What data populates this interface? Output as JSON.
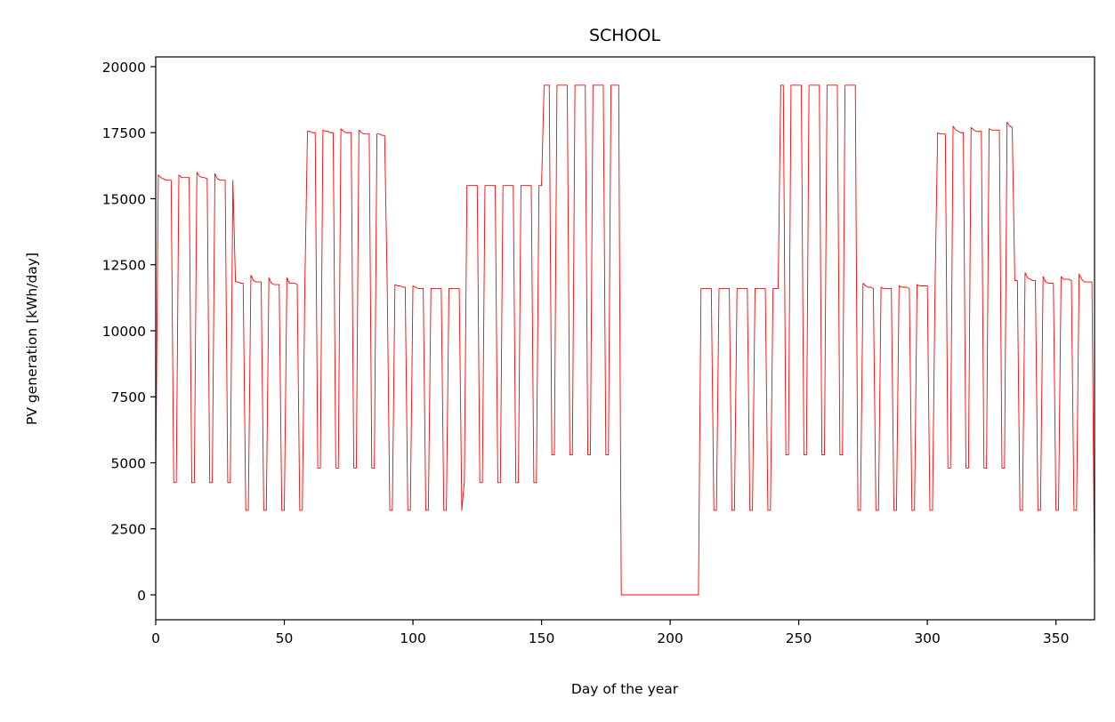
{
  "chart_data": {
    "type": "line",
    "title": "SCHOOL",
    "x_label": "Day of the year",
    "y_label": "PV generation [kWh/day]",
    "xlim": [
      0,
      365
    ],
    "ylim": [
      -943,
      20370
    ],
    "xticks": [
      0,
      50,
      100,
      150,
      200,
      250,
      300,
      350
    ],
    "yticks": [
      0,
      2500,
      5000,
      7500,
      10000,
      12500,
      15000,
      17500,
      20000
    ],
    "x": [
      0,
      1,
      2,
      3,
      4,
      5,
      6,
      7,
      8,
      9,
      10,
      11,
      12,
      13,
      14,
      15,
      16,
      17,
      18,
      19,
      20,
      21,
      22,
      23,
      24,
      25,
      26,
      27,
      28,
      29,
      30,
      31,
      32,
      33,
      34,
      35,
      36,
      37,
      38,
      39,
      40,
      41,
      42,
      43,
      44,
      45,
      46,
      47,
      48,
      49,
      50,
      51,
      52,
      53,
      54,
      55,
      56,
      57,
      58,
      59,
      60,
      61,
      62,
      63,
      64,
      65,
      66,
      67,
      68,
      69,
      70,
      71,
      72,
      73,
      74,
      75,
      76,
      77,
      78,
      79,
      80,
      81,
      82,
      83,
      84,
      85,
      86,
      87,
      88,
      89,
      90,
      91,
      92,
      93,
      94,
      95,
      96,
      97,
      98,
      99,
      100,
      101,
      102,
      103,
      104,
      105,
      106,
      107,
      108,
      109,
      110,
      111,
      112,
      113,
      114,
      115,
      116,
      117,
      118,
      119,
      120,
      121,
      122,
      123,
      124,
      125,
      126,
      127,
      128,
      129,
      130,
      131,
      132,
      133,
      134,
      135,
      136,
      137,
      138,
      139,
      140,
      141,
      142,
      143,
      144,
      145,
      146,
      147,
      148,
      149,
      150,
      151,
      152,
      153,
      154,
      155,
      156,
      157,
      158,
      159,
      160,
      161,
      162,
      163,
      164,
      165,
      166,
      167,
      168,
      169,
      170,
      171,
      172,
      173,
      174,
      175,
      176,
      177,
      178,
      179,
      180,
      181,
      182,
      183,
      184,
      185,
      186,
      187,
      188,
      189,
      190,
      191,
      192,
      193,
      194,
      195,
      196,
      197,
      198,
      199,
      200,
      201,
      202,
      203,
      204,
      205,
      206,
      207,
      208,
      209,
      210,
      211,
      212,
      213,
      214,
      215,
      216,
      217,
      218,
      219,
      220,
      221,
      222,
      223,
      224,
      225,
      226,
      227,
      228,
      229,
      230,
      231,
      232,
      233,
      234,
      235,
      236,
      237,
      238,
      239,
      240,
      241,
      242,
      243,
      244,
      245,
      246,
      247,
      248,
      249,
      250,
      251,
      252,
      253,
      254,
      255,
      256,
      257,
      258,
      259,
      260,
      261,
      262,
      263,
      264,
      265,
      266,
      267,
      268,
      269,
      270,
      271,
      272,
      273,
      274,
      275,
      276,
      277,
      278,
      279,
      280,
      281,
      282,
      283,
      284,
      285,
      286,
      287,
      288,
      289,
      290,
      291,
      292,
      293,
      294,
      295,
      296,
      297,
      298,
      299,
      300,
      301,
      302,
      303,
      304,
      305,
      306,
      307,
      308,
      309,
      310,
      311,
      312,
      313,
      314,
      315,
      316,
      317,
      318,
      319,
      320,
      321,
      322,
      323,
      324,
      325,
      326,
      327,
      328,
      329,
      330,
      331,
      332,
      333,
      334,
      335,
      336,
      337,
      338,
      339,
      340,
      341,
      342,
      343,
      344,
      345,
      346,
      347,
      348,
      349,
      350,
      351,
      352,
      353,
      354,
      355,
      356,
      357,
      358,
      359,
      360,
      361,
      362,
      363,
      364,
      365
    ],
    "series": [
      {
        "color": "#ff0000",
        "values": [
          4250,
          15900,
          15800,
          15750,
          15700,
          15700,
          15700,
          4250,
          4250,
          15900,
          15800,
          15800,
          15800,
          15800,
          4250,
          4250,
          16000,
          15850,
          15800,
          15800,
          15750,
          4250,
          4250,
          15950,
          15750,
          15700,
          15700,
          15700,
          4250,
          4250,
          15700,
          11850,
          11850,
          11800,
          11800,
          3200,
          3200,
          12100,
          11900,
          11850,
          11850,
          11850,
          3200,
          3200,
          12000,
          11800,
          11750,
          11750,
          11750,
          3200,
          3200,
          12000,
          11800,
          11800,
          11800,
          11750,
          3200,
          3200,
          11850,
          17550,
          17550,
          17500,
          17500,
          4800,
          4800,
          17600,
          17550,
          17550,
          17500,
          17500,
          4800,
          4800,
          17650,
          17550,
          17500,
          17500,
          17500,
          4800,
          4800,
          17600,
          17500,
          17450,
          17450,
          17450,
          4800,
          4800,
          17450,
          17450,
          17400,
          17400,
          11700,
          3200,
          3200,
          11750,
          11700,
          11700,
          11650,
          11650,
          3200,
          3200,
          11700,
          11650,
          11600,
          11600,
          11600,
          3200,
          3200,
          11600,
          11600,
          11600,
          11600,
          11600,
          3200,
          3200,
          11600,
          11600,
          11600,
          11600,
          11600,
          3200,
          4300,
          15500,
          15500,
          15500,
          15500,
          15500,
          4250,
          4250,
          15500,
          15500,
          15500,
          15500,
          15500,
          4250,
          4250,
          15500,
          15500,
          15500,
          15500,
          15500,
          4250,
          4250,
          15500,
          15500,
          15500,
          15500,
          15500,
          4250,
          4250,
          15500,
          15500,
          19300,
          19300,
          19300,
          5300,
          5300,
          19300,
          19300,
          19300,
          19300,
          19300,
          5300,
          5300,
          19300,
          19300,
          19300,
          19300,
          19300,
          5300,
          5300,
          19300,
          19300,
          19300,
          19300,
          19300,
          5300,
          5300,
          19300,
          19300,
          19300,
          19300,
          0,
          0,
          0,
          0,
          0,
          0,
          0,
          0,
          0,
          0,
          0,
          0,
          0,
          0,
          0,
          0,
          0,
          0,
          0,
          0,
          0,
          0,
          0,
          0,
          0,
          0,
          0,
          0,
          0,
          0,
          0,
          11600,
          11600,
          11600,
          11600,
          11600,
          3200,
          3200,
          11600,
          11600,
          11600,
          11600,
          11600,
          3200,
          3200,
          11600,
          11600,
          11600,
          11600,
          11600,
          3200,
          3200,
          11600,
          11600,
          11600,
          11600,
          11600,
          3200,
          3200,
          11600,
          11600,
          11600,
          19300,
          19300,
          5300,
          5300,
          19300,
          19300,
          19300,
          19300,
          19300,
          5300,
          5300,
          19300,
          19300,
          19300,
          19300,
          19300,
          5300,
          5300,
          19300,
          19300,
          19300,
          19300,
          19300,
          5300,
          5300,
          19300,
          19300,
          19300,
          19300,
          19300,
          3200,
          3200,
          11800,
          11700,
          11650,
          11650,
          11600,
          3200,
          3200,
          11650,
          11600,
          11600,
          11600,
          11600,
          3200,
          3200,
          11700,
          11650,
          11650,
          11650,
          11600,
          3200,
          3200,
          11750,
          11700,
          11700,
          11700,
          11700,
          3200,
          3200,
          11700,
          17500,
          17450,
          17450,
          17450,
          4800,
          4800,
          17750,
          17600,
          17550,
          17500,
          17500,
          4800,
          4800,
          17700,
          17600,
          17550,
          17550,
          17550,
          4800,
          4800,
          17650,
          17600,
          17600,
          17600,
          17600,
          4800,
          4800,
          17900,
          17750,
          17700,
          11900,
          11900,
          3200,
          3200,
          12200,
          12000,
          11950,
          11900,
          11900,
          3200,
          3200,
          12050,
          11850,
          11800,
          11800,
          11800,
          3200,
          3200,
          12050,
          11950,
          11950,
          11950,
          11900,
          3200,
          3200,
          12150,
          11950,
          11850,
          11850,
          11850,
          11850,
          600
        ]
      }
    ]
  }
}
